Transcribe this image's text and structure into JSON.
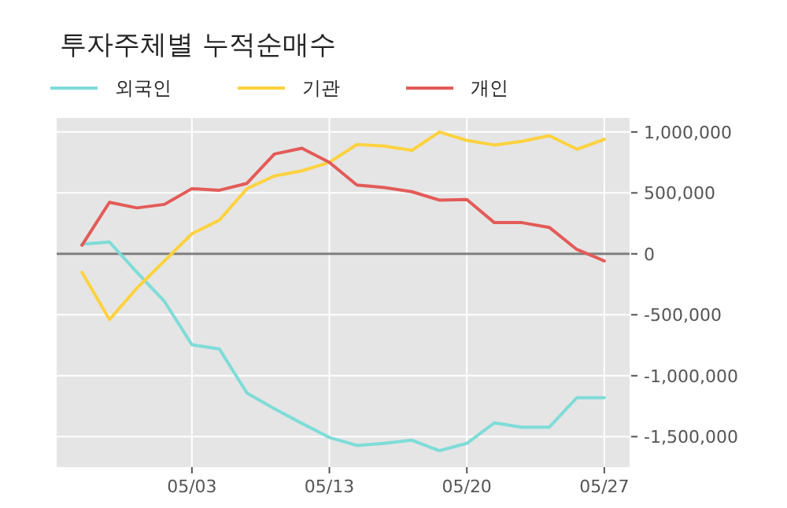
{
  "chart_data": {
    "type": "line",
    "title": "투자주체별 누적순매수",
    "categories": [
      null,
      null,
      null,
      null,
      "05/03",
      null,
      null,
      null,
      null,
      "05/13",
      null,
      null,
      null,
      null,
      "05/20",
      null,
      null,
      null,
      null,
      "05/27"
    ],
    "series": [
      {
        "name": "외국인",
        "color": "#7edcd8",
        "values": [
          80000,
          97000,
          -152000,
          -390000,
          -746000,
          -781000,
          -1142000,
          -1271000,
          -1391000,
          -1507000,
          -1572000,
          -1555000,
          -1529000,
          -1615000,
          -1555000,
          -1387000,
          -1422000,
          -1422000,
          -1181000,
          -1181000
        ]
      },
      {
        "name": "기관",
        "color": "#fdd23f",
        "values": [
          -152000,
          -539000,
          -281000,
          -58000,
          165000,
          277000,
          535000,
          639000,
          681000,
          751000,
          897000,
          884000,
          849000,
          1000000,
          931000,
          893000,
          923000,
          970000,
          858000,
          940000
        ]
      },
      {
        "name": "개인",
        "color": "#e35b58",
        "values": [
          71000,
          423000,
          377000,
          406000,
          535000,
          522000,
          578000,
          819000,
          867000,
          751000,
          565000,
          544000,
          510000,
          441000,
          445000,
          256000,
          256000,
          217000,
          36000,
          -58000
        ]
      }
    ],
    "ylim": [
      -1750000,
      1115000
    ],
    "yticks": [
      {
        "value": -1500000,
        "label": "-1,500,000"
      },
      {
        "value": -1000000,
        "label": "-1,000,000"
      },
      {
        "value": -500000,
        "label": "-500,000"
      },
      0,
      {
        "value": 500000,
        "label": "500,000"
      },
      {
        "value": 1000000,
        "label": "1,000,000"
      }
    ],
    "ref_lines": [
      {
        "axis": "y",
        "value": 0,
        "color": "#808080"
      }
    ],
    "grid": true,
    "legend": "top left"
  }
}
